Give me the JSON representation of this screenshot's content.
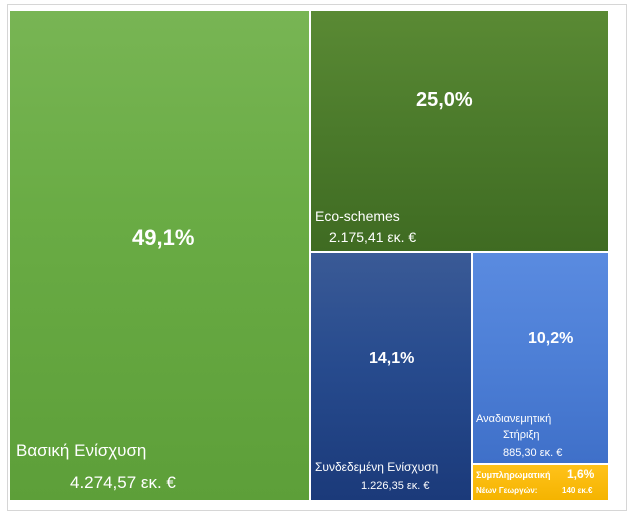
{
  "chart_data": {
    "type": "treemap",
    "unit": "εκ. €",
    "colors": {
      "basic": "#6aac45",
      "eco": "#4b7a2b",
      "coupled": "#274b8e",
      "redist": "#4d7fd6",
      "young": "#f5b400"
    },
    "tiles": [
      {
        "key": "basic",
        "name": "Βασική Ενίσχυση",
        "value": 4274.57,
        "value_label": "4.274,57 εκ. €",
        "percent": 49.1,
        "percent_label": "49,1%"
      },
      {
        "key": "eco",
        "name": "Eco-schemes",
        "value": 2175.41,
        "value_label": "2.175,41 εκ. €",
        "percent": 25.0,
        "percent_label": "25,0%"
      },
      {
        "key": "coupled",
        "name": "Συνδεδεμένη Ενίσχυση",
        "value": 1226.35,
        "value_label": "1.226,35 εκ. €",
        "percent": 14.1,
        "percent_label": "14,1%"
      },
      {
        "key": "redist",
        "name_line1": "Αναδιανεμητική",
        "name_line2": "Στήριξη",
        "value": 885.3,
        "value_label": "885,30 εκ. €",
        "percent": 10.2,
        "percent_label": "10,2%"
      },
      {
        "key": "young",
        "name_line1": "Συμπληρωματική",
        "name_line2": "Νέων Γεωργών:",
        "value": 140,
        "value_label": "140 εκ.€",
        "percent": 1.6,
        "percent_label": "1,6%"
      }
    ]
  }
}
